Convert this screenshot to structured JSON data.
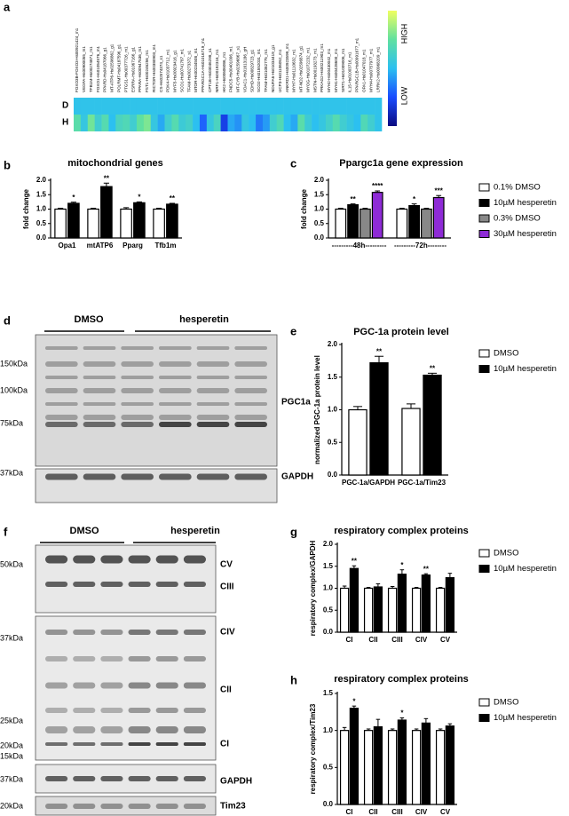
{
  "panels": {
    "a": "a",
    "b": "b",
    "c": "c",
    "d": "d",
    "e": "e",
    "f": "f",
    "g": "g",
    "h": "h"
  },
  "heatmap": {
    "genes": [
      "FOXO3B-FOXO3-Hs00921424_m1",
      "VEGFA-Hs00900055_m1",
      "TFB1M-Hs00274871_m1",
      "FOXO1-Hs01054576_m1",
      "PPARD-Hs04187066_g1",
      "MT-ATP6-Hs02596862_g1",
      "POLRMT-Hs04187596_g1",
      "PTGS1-Hs00377726_m1",
      "ESRRA-Hs01067166_g1",
      "PPARA-Hs00947536_m1",
      "FST1-Hs00246256_m1",
      "RICTOR-Hs00380903_m1",
      "CS-Hs02574374_s1",
      "PDK4-Hs01037712_m1",
      "MYF5-Hs00929416_g1",
      "SCO1-Hs00741787_m1",
      "TFAM-Hs00273372_s1",
      "MTOR-Hs00234508_m1",
      "PPARGC1A-Hs01016719_m1",
      "CPT1B-Hs03046298_s1",
      "NRF1-Hs00192316_m1",
      "HK2-Hs00606086_m1",
      "FNDC5-Hs00401006_m1",
      "MT-CYB-Hs02596867_s1",
      "VDAC1-Hs01613186_gH",
      "SDHD-Hs00829723_g1",
      "SCO2-Hs01552031_m1",
      "TFAM-Hs01082775_m1",
      "NDUFA6-Hs01034419_g1",
      "UCP3-Hs01106052_m1",
      "ANKRD1-Hs00923599_m1",
      "MYH7-Hs01110632_m1",
      "MT-ND2-Hs02596874_g1",
      "MYOG-Hs01072232_m1",
      "MSTN-Hs00193273_m1",
      "PRKAG2-Hs00211903_m1",
      "MYH2-Hs00430042_m1",
      "MYH1-Hs00428600_m1",
      "SIRT1-Hs01009006_m1",
      "IL15-Hs01003716_m1",
      "PPARGC1B-Hs00991677_m1",
      "OPA1-Hs01047018_m1",
      "MYH4-Hs00757977_m1",
      "LRRK2-Hs00968209_m1"
    ],
    "rows": [
      {
        "label": "D",
        "values": [
          0.52,
          0.52,
          0.52,
          0.52,
          0.52,
          0.52,
          0.52,
          0.52,
          0.52,
          0.52,
          0.52,
          0.52,
          0.52,
          0.52,
          0.52,
          0.52,
          0.52,
          0.52,
          0.52,
          0.52,
          0.52,
          0.52,
          0.52,
          0.52,
          0.52,
          0.52,
          0.52,
          0.52,
          0.52,
          0.52,
          0.52,
          0.52,
          0.52,
          0.52,
          0.52,
          0.52,
          0.52,
          0.52,
          0.52,
          0.52,
          0.52,
          0.52,
          0.52,
          0.52
        ]
      },
      {
        "label": "H",
        "values": [
          0.72,
          0.55,
          0.78,
          0.6,
          0.7,
          0.5,
          0.65,
          0.68,
          0.6,
          0.75,
          0.8,
          0.55,
          0.45,
          0.6,
          0.7,
          0.58,
          0.62,
          0.5,
          0.3,
          0.55,
          0.65,
          0.2,
          0.45,
          0.4,
          0.55,
          0.5,
          0.35,
          0.42,
          0.6,
          0.68,
          0.5,
          0.45,
          0.72,
          0.58,
          0.5,
          0.55,
          0.62,
          0.7,
          0.6,
          0.55,
          0.5,
          0.68,
          0.6,
          0.52
        ]
      }
    ],
    "high": "HIGH",
    "low": "LOW"
  },
  "chart_data": [
    {
      "type": "bar",
      "title": "mitochondrial genes",
      "y_label": "fold change",
      "categories": [
        "Opa1",
        "mtATP6",
        "Pparg",
        "Tfb1m"
      ],
      "ylim": [
        0,
        2.0
      ],
      "yticks": [
        {
          "value": 0,
          "label": "0.0"
        },
        0.5,
        {
          "value": 1.0,
          "label": "1.0"
        },
        1.5,
        {
          "value": 2.0,
          "label": "2.0"
        }
      ],
      "legend": false,
      "series": [
        {
          "color": "#ffffff",
          "values": [
            1.0,
            1.0,
            1.0,
            1.0
          ],
          "errors": [
            0.03,
            0.03,
            0.05,
            0.03
          ],
          "significance": [
            null,
            null,
            null,
            null
          ]
        },
        {
          "color": "#000000",
          "values": [
            1.2,
            1.78,
            1.22,
            1.17
          ],
          "errors": [
            0.04,
            0.12,
            0.03,
            0.03
          ],
          "significance": [
            "*",
            "**",
            "*",
            "**"
          ]
        }
      ]
    },
    {
      "type": "bar",
      "title": "Ppargc1a gene expression",
      "y_label": "fold change",
      "categories": [
        "---------48h---------",
        "---------72h--------"
      ],
      "ylim": [
        0,
        2.0
      ],
      "yticks": [
        {
          "value": 0,
          "label": "0.0"
        },
        0.5,
        {
          "value": 1.0,
          "label": "1.0"
        },
        1.5,
        {
          "value": 2.0,
          "label": "2.0"
        }
      ],
      "legend": true,
      "series": [
        {
          "name": "0.1% DMSO",
          "color": "#ffffff",
          "values": [
            1.0,
            1.0
          ],
          "errors": [
            0.03,
            0.03
          ],
          "significance": [
            null,
            null
          ]
        },
        {
          "name": "10µM hesperetin",
          "color": "#000000",
          "values": [
            1.15,
            1.12
          ],
          "errors": [
            0.03,
            0.06
          ],
          "significance": [
            "**",
            "*"
          ]
        },
        {
          "name": "0.3% DMSO",
          "color": "#888888",
          "values": [
            1.0,
            1.0
          ],
          "errors": [
            0.03,
            0.03
          ],
          "significance": [
            null,
            null
          ]
        },
        {
          "name": "30µM hesperetin",
          "color": "#8e2bd6",
          "values": [
            1.58,
            1.4
          ],
          "errors": [
            0.05,
            0.07
          ],
          "significance": [
            "****",
            "***"
          ]
        }
      ]
    },
    {
      "type": "bar",
      "title": "PGC-1a protein level",
      "y_label": "normalized PGC-1a protein level",
      "categories": [
        "PGC-1a/GAPDH",
        "PGC-1a/Tim23"
      ],
      "ylim": [
        0,
        2.0
      ],
      "yticks": [
        {
          "value": 0,
          "label": "0.0"
        },
        0.5,
        {
          "value": 1.0,
          "label": "1.0"
        },
        1.5,
        {
          "value": 2.0,
          "label": "2.0"
        }
      ],
      "legend": true,
      "series": [
        {
          "name": "DMSO",
          "color": "#ffffff",
          "values": [
            1.0,
            1.02
          ],
          "errors": [
            0.05,
            0.07
          ],
          "significance": [
            null,
            null
          ]
        },
        {
          "name": "10µM hesperetin",
          "color": "#000000",
          "values": [
            1.72,
            1.53
          ],
          "errors": [
            0.1,
            0.03
          ],
          "significance": [
            "**",
            "**"
          ]
        }
      ]
    },
    {
      "type": "bar",
      "title": "respiratory complex proteins",
      "y_label": "respiratory complex/GAPDH",
      "categories": [
        "CI",
        "CII",
        "CIII",
        "CIV",
        "CV"
      ],
      "ylim": [
        0,
        2.0
      ],
      "yticks": [
        {
          "value": 0,
          "label": "0.0"
        },
        0.5,
        {
          "value": 1.0,
          "label": "1.0"
        },
        1.5,
        {
          "value": 2.0,
          "label": "2.0"
        }
      ],
      "legend": true,
      "series": [
        {
          "name": "DMSO",
          "color": "#ffffff",
          "values": [
            1.0,
            1.0,
            1.0,
            1.0,
            1.0
          ],
          "errors": [
            0.05,
            0.02,
            0.04,
            0.02,
            0.02
          ],
          "significance": [
            null,
            null,
            null,
            null,
            null
          ]
        },
        {
          "name": "10µM hesperetin",
          "color": "#000000",
          "values": [
            1.45,
            1.03,
            1.32,
            1.3,
            1.24
          ],
          "errors": [
            0.06,
            0.07,
            0.1,
            0.03,
            0.1
          ],
          "significance": [
            "**",
            null,
            "*",
            "**",
            null
          ]
        }
      ]
    },
    {
      "type": "bar",
      "title": "respiratory complex proteins",
      "y_label": "respiratory complex/Tim23",
      "categories": [
        "CI",
        "CII",
        "CIII",
        "CIV",
        "CV"
      ],
      "ylim": [
        0,
        1.5
      ],
      "yticks": [
        {
          "value": 0,
          "label": "0.0"
        },
        0.5,
        {
          "value": 1.0,
          "label": "1.0"
        },
        1.5
      ],
      "legend": true,
      "series": [
        {
          "name": "DMSO",
          "color": "#ffffff",
          "values": [
            1.0,
            1.0,
            1.0,
            1.0,
            1.0
          ],
          "errors": [
            0.04,
            0.02,
            0.02,
            0.02,
            0.02
          ],
          "significance": [
            null,
            null,
            null,
            null,
            null
          ]
        },
        {
          "name": "10µM hesperetin",
          "color": "#000000",
          "values": [
            1.3,
            1.05,
            1.14,
            1.1,
            1.06
          ],
          "errors": [
            0.03,
            0.1,
            0.03,
            0.06,
            0.03
          ],
          "significance": [
            "*",
            null,
            "*",
            null,
            null
          ]
        }
      ]
    }
  ],
  "blot_d": {
    "groups": [
      "DMSO",
      "hesperetin"
    ],
    "markers": [
      "150kDa",
      "100kDa",
      "75kDa",
      "37kDa"
    ],
    "proteins": [
      "PGC1a",
      "GAPDH"
    ]
  },
  "blot_f": {
    "groups": [
      "DMSO",
      "hesperetin"
    ],
    "markers": [
      "50kDa",
      "37kDa",
      "25kDa",
      "20kDa",
      "15kDa",
      "37kDa",
      "20kDa"
    ],
    "proteins": [
      "CV",
      "CIII",
      "CIV",
      "CII",
      "CI",
      "GAPDH",
      "Tim23"
    ]
  }
}
